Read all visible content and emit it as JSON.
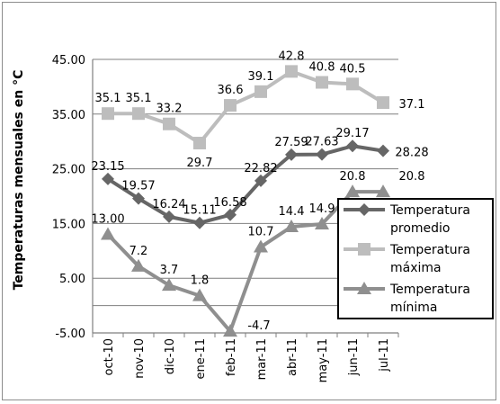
{
  "chart_data": {
    "type": "line",
    "ylabel": "Temperaturas mensuales en °C",
    "xlabel": "",
    "ylim": [
      -5,
      45
    ],
    "yticks": [
      "-5.00",
      "5.00",
      "15.00",
      "25.00",
      "35.00",
      "45.00"
    ],
    "categories": [
      "oct-10",
      "nov-10",
      "dic-10",
      "ene-11",
      "feb-11",
      "mar-11",
      "abr-11",
      "may-11",
      "jun-11",
      "jul-11"
    ],
    "grid": true,
    "legend_position": "bottom-right",
    "series": [
      {
        "name": "Temperatura promedio",
        "legend_lines": [
          "Temperatura",
          "promedio"
        ],
        "marker": "diamond",
        "color": "#666666",
        "values": [
          23.15,
          19.57,
          16.24,
          15.11,
          16.58,
          22.82,
          27.59,
          27.63,
          29.17,
          28.28
        ],
        "labels": [
          "23.15",
          "19.57",
          "16.24",
          "15.11",
          "16.58",
          "22.82",
          "27.59",
          "27.63",
          "29.17",
          "28.28"
        ]
      },
      {
        "name": "Temperatura máxima",
        "legend_lines": [
          "Temperatura",
          "máxima"
        ],
        "marker": "square",
        "color": "#bdbdbd",
        "values": [
          35.1,
          35.1,
          33.2,
          29.7,
          36.6,
          39.1,
          42.8,
          40.8,
          40.5,
          37.1
        ],
        "labels": [
          "35.1",
          "35.1",
          "33.2",
          "29.7",
          "36.6",
          "39.1",
          "42.8",
          "40.8",
          "40.5",
          "37.1"
        ]
      },
      {
        "name": "Temperatura mínima",
        "legend_lines": [
          "Temperatura",
          "mínima"
        ],
        "marker": "triangle",
        "color": "#8f8f8f",
        "values": [
          13.0,
          7.2,
          3.7,
          1.8,
          -4.7,
          10.7,
          14.4,
          14.9,
          20.8,
          20.8
        ],
        "labels": [
          "13.00",
          "7.2",
          "3.7",
          "1.8",
          "-4.7",
          "10.7",
          "14.4",
          "14.9",
          "20.8",
          "20.8"
        ]
      }
    ]
  }
}
